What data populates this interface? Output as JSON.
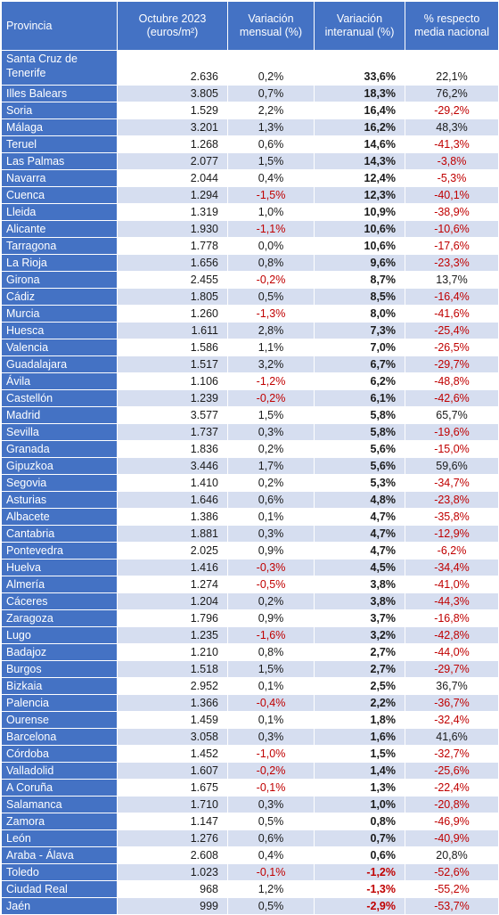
{
  "headers": [
    "Provincia",
    "Octubre 2023 (euros/m²)",
    "Variación mensual (%)",
    "Variación interanual (%)",
    "% respecto media nacional"
  ],
  "rows": [
    [
      "Santa Cruz de Tenerife",
      "2.636",
      "0,2%",
      "33,6%",
      "22,1%"
    ],
    [
      "Illes Balears",
      "3.805",
      "0,7%",
      "18,3%",
      "76,2%"
    ],
    [
      "Soria",
      "1.529",
      "2,2%",
      "16,4%",
      "-29,2%"
    ],
    [
      "Málaga",
      "3.201",
      "1,3%",
      "16,2%",
      "48,3%"
    ],
    [
      "Teruel",
      "1.268",
      "0,6%",
      "14,6%",
      "-41,3%"
    ],
    [
      "Las Palmas",
      "2.077",
      "1,5%",
      "14,3%",
      "-3,8%"
    ],
    [
      "Navarra",
      "2.044",
      "0,4%",
      "12,4%",
      "-5,3%"
    ],
    [
      "Cuenca",
      "1.294",
      "-1,5%",
      "12,3%",
      "-40,1%"
    ],
    [
      "Lleida",
      "1.319",
      "1,0%",
      "10,9%",
      "-38,9%"
    ],
    [
      "Alicante",
      "1.930",
      "-1,1%",
      "10,6%",
      "-10,6%"
    ],
    [
      "Tarragona",
      "1.778",
      "0,0%",
      "10,6%",
      "-17,6%"
    ],
    [
      "La Rioja",
      "1.656",
      "0,8%",
      "9,6%",
      "-23,3%"
    ],
    [
      "Girona",
      "2.455",
      "-0,2%",
      "8,7%",
      "13,7%"
    ],
    [
      "Cádiz",
      "1.805",
      "0,5%",
      "8,5%",
      "-16,4%"
    ],
    [
      "Murcia",
      "1.260",
      "-1,3%",
      "8,0%",
      "-41,6%"
    ],
    [
      "Huesca",
      "1.611",
      "2,8%",
      "7,3%",
      "-25,4%"
    ],
    [
      "Valencia",
      "1.586",
      "1,1%",
      "7,0%",
      "-26,5%"
    ],
    [
      "Guadalajara",
      "1.517",
      "3,2%",
      "6,7%",
      "-29,7%"
    ],
    [
      "Ávila",
      "1.106",
      "-1,2%",
      "6,2%",
      "-48,8%"
    ],
    [
      "Castellón",
      "1.239",
      "-0,2%",
      "6,1%",
      "-42,6%"
    ],
    [
      "Madrid",
      "3.577",
      "1,5%",
      "5,8%",
      "65,7%"
    ],
    [
      "Sevilla",
      "1.737",
      "0,3%",
      "5,8%",
      "-19,6%"
    ],
    [
      "Granada",
      "1.836",
      "0,2%",
      "5,6%",
      "-15,0%"
    ],
    [
      "Gipuzkoa",
      "3.446",
      "1,7%",
      "5,6%",
      "59,6%"
    ],
    [
      "Segovia",
      "1.410",
      "0,2%",
      "5,3%",
      "-34,7%"
    ],
    [
      "Asturias",
      "1.646",
      "0,6%",
      "4,8%",
      "-23,8%"
    ],
    [
      "Albacete",
      "1.386",
      "0,1%",
      "4,7%",
      "-35,8%"
    ],
    [
      "Cantabria",
      "1.881",
      "0,3%",
      "4,7%",
      "-12,9%"
    ],
    [
      "Pontevedra",
      "2.025",
      "0,9%",
      "4,7%",
      "-6,2%"
    ],
    [
      "Huelva",
      "1.416",
      "-0,3%",
      "4,5%",
      "-34,4%"
    ],
    [
      "Almería",
      "1.274",
      "-0,5%",
      "3,8%",
      "-41,0%"
    ],
    [
      "Cáceres",
      "1.204",
      "0,2%",
      "3,8%",
      "-44,3%"
    ],
    [
      "Zaragoza",
      "1.796",
      "0,9%",
      "3,7%",
      "-16,8%"
    ],
    [
      "Lugo",
      "1.235",
      "-1,6%",
      "3,2%",
      "-42,8%"
    ],
    [
      "Badajoz",
      "1.210",
      "0,8%",
      "2,7%",
      "-44,0%"
    ],
    [
      "Burgos",
      "1.518",
      "1,5%",
      "2,7%",
      "-29,7%"
    ],
    [
      "Bizkaia",
      "2.952",
      "0,1%",
      "2,5%",
      "36,7%"
    ],
    [
      "Palencia",
      "1.366",
      "-0,4%",
      "2,2%",
      "-36,7%"
    ],
    [
      "Ourense",
      "1.459",
      "0,1%",
      "1,8%",
      "-32,4%"
    ],
    [
      "Barcelona",
      "3.058",
      "0,3%",
      "1,6%",
      "41,6%"
    ],
    [
      "Córdoba",
      "1.452",
      "-1,0%",
      "1,5%",
      "-32,7%"
    ],
    [
      "Valladolid",
      "1.607",
      "-0,2%",
      "1,4%",
      "-25,6%"
    ],
    [
      "A Coruña",
      "1.675",
      "-0,1%",
      "1,3%",
      "-22,4%"
    ],
    [
      "Salamanca",
      "1.710",
      "0,3%",
      "1,0%",
      "-20,8%"
    ],
    [
      "Zamora",
      "1.147",
      "0,5%",
      "0,8%",
      "-46,9%"
    ],
    [
      "León",
      "1.276",
      "0,6%",
      "0,7%",
      "-40,9%"
    ],
    [
      "Araba - Álava",
      "2.608",
      "0,4%",
      "0,6%",
      "20,8%"
    ],
    [
      "Toledo",
      "1.023",
      "-0,1%",
      "-1,2%",
      "-52,6%"
    ],
    [
      "Ciudad Real",
      "968",
      "1,2%",
      "-1,3%",
      "-55,2%"
    ],
    [
      "Jaén",
      "999",
      "0,5%",
      "-2,9%",
      "-53,7%"
    ]
  ],
  "colors": {
    "header_bg": "#4472c4",
    "band": "#d6def0",
    "negative": "#c00000"
  }
}
